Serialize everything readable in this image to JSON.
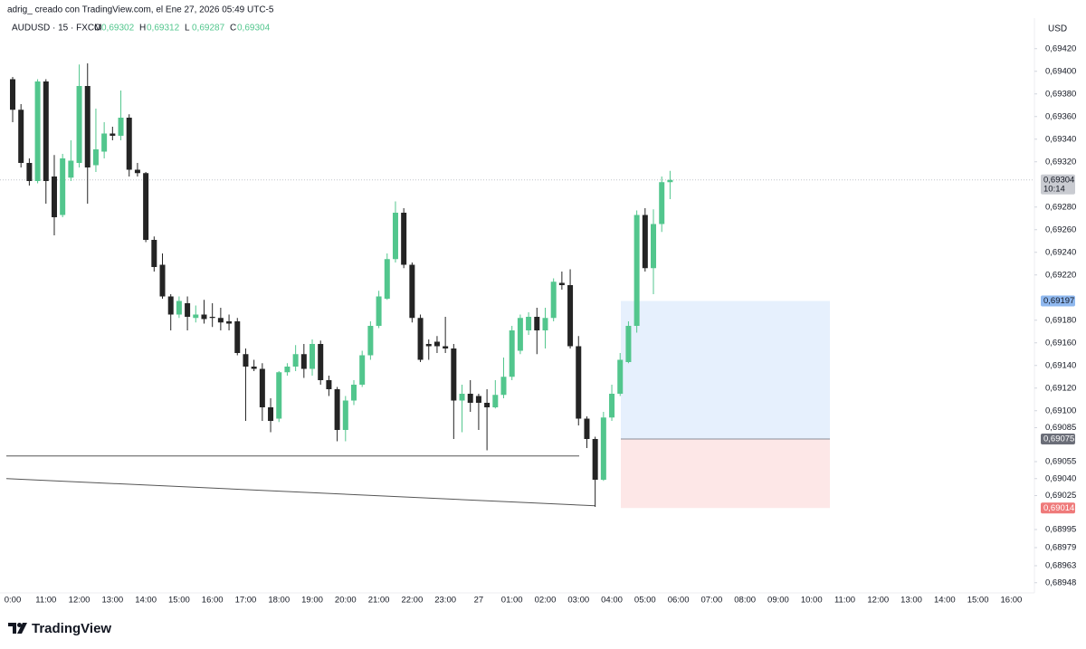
{
  "header": "adrig_ creado con TradingView.com, el Ene 27, 2026 05:49 UTC-5",
  "legend": {
    "symbol": "AUDUSD · 15 · FXCM",
    "ohlc": [
      {
        "key": "O",
        "value": "0,69302"
      },
      {
        "key": "H",
        "value": "0,69312"
      },
      {
        "key": "L",
        "value": "0,69287"
      },
      {
        "key": "C",
        "value": "0,69304"
      }
    ]
  },
  "logo": "TradingView",
  "chart_data": {
    "type": "candlestick",
    "currency": "USD",
    "up_color": "#52c68d",
    "down_color": "#242424",
    "open": [
      0.69393,
      0.69366,
      0.69319,
      0.69303,
      0.69391,
      0.69307,
      0.69273,
      0.69306,
      0.69319,
      0.69387,
      0.69317,
      0.69329,
      0.69345,
      0.69343,
      0.69359,
      0.69313,
      0.6931,
      0.69251,
      0.69229,
      0.69201,
      0.69185,
      0.69195,
      0.69182,
      0.69185,
      0.69183,
      0.69182,
      0.69179,
      0.69179,
      0.6915,
      0.69139,
      0.69137,
      0.69103,
      0.69093,
      0.69134,
      0.69139,
      0.6915,
      0.69137,
      0.69159,
      0.69127,
      0.69119,
      0.69083,
      0.69109,
      0.69123,
      0.69149,
      0.69175,
      0.69199,
      0.69234,
      0.69275,
      0.69229,
      0.69182,
      0.69159,
      0.69161,
      0.69157,
      0.69155,
      0.69109,
      0.69115,
      0.69113,
      0.69107,
      0.69103,
      0.69114,
      0.6913,
      0.69153,
      0.69171,
      0.69183,
      0.69171,
      0.69182,
      0.69213,
      0.69211,
      0.69157,
      0.69093,
      0.69075,
      0.69039,
      0.69094,
      0.69115,
      0.69143,
      0.69175,
      0.69273,
      0.69226,
      0.69265,
      0.69302
    ],
    "high": [
      0.69395,
      0.69371,
      0.69323,
      0.69393,
      0.69393,
      0.69326,
      0.69327,
      0.69339,
      0.69406,
      0.69407,
      0.69367,
      0.69355,
      0.69351,
      0.69383,
      0.69362,
      0.69319,
      0.69311,
      0.69254,
      0.69239,
      0.69203,
      0.69201,
      0.69201,
      0.69193,
      0.69198,
      0.69195,
      0.69191,
      0.69185,
      0.69182,
      0.69155,
      0.69145,
      0.69142,
      0.69111,
      0.69135,
      0.69142,
      0.69158,
      0.69159,
      0.69163,
      0.69162,
      0.69131,
      0.69121,
      0.69113,
      0.69127,
      0.69153,
      0.69179,
      0.69206,
      0.69239,
      0.69285,
      0.69279,
      0.69231,
      0.69185,
      0.69163,
      0.69166,
      0.69183,
      0.69159,
      0.69123,
      0.69127,
      0.69115,
      0.69119,
      0.69127,
      0.69147,
      0.69175,
      0.69185,
      0.69187,
      0.69191,
      0.69191,
      0.69217,
      0.69223,
      0.69225,
      0.69166,
      0.69095,
      0.69077,
      0.69099,
      0.69123,
      0.69151,
      0.69179,
      0.69277,
      0.69279,
      0.69278,
      0.69307,
      0.69312
    ],
    "low": [
      0.69355,
      0.69315,
      0.69299,
      0.69301,
      0.69283,
      0.69255,
      0.69271,
      0.69303,
      0.69315,
      0.69283,
      0.69311,
      0.69323,
      0.69339,
      0.69339,
      0.69307,
      0.69307,
      0.69249,
      0.69223,
      0.69199,
      0.69171,
      0.69182,
      0.69171,
      0.69178,
      0.69177,
      0.69174,
      0.69171,
      0.69171,
      0.69149,
      0.69091,
      0.69135,
      0.69091,
      0.69081,
      0.6909,
      0.69131,
      0.69135,
      0.69129,
      0.69131,
      0.69123,
      0.69113,
      0.69073,
      0.69073,
      0.69105,
      0.69121,
      0.69145,
      0.69173,
      0.69198,
      0.69231,
      0.69226,
      0.69178,
      0.69143,
      0.69145,
      0.69151,
      0.69151,
      0.69075,
      0.69081,
      0.69099,
      0.69083,
      0.69065,
      0.69102,
      0.69111,
      0.69127,
      0.6915,
      0.69167,
      0.6915,
      0.69155,
      0.69179,
      0.69207,
      0.69155,
      0.69087,
      0.69067,
      0.69015,
      0.69038,
      0.69091,
      0.69113,
      0.69142,
      0.69169,
      0.69223,
      0.69203,
      0.69258,
      0.69287
    ],
    "close": [
      0.69366,
      0.69319,
      0.69303,
      0.69391,
      0.69303,
      0.69271,
      0.69323,
      0.69321,
      0.69387,
      0.69315,
      0.69331,
      0.69345,
      0.69343,
      0.69359,
      0.69313,
      0.6931,
      0.69251,
      0.69227,
      0.69201,
      0.69185,
      0.69197,
      0.69183,
      0.69185,
      0.69181,
      0.69182,
      0.69178,
      0.69177,
      0.69151,
      0.69139,
      0.69137,
      0.69103,
      0.69091,
      0.69134,
      0.69139,
      0.6915,
      0.69137,
      0.69159,
      0.69127,
      0.69119,
      0.69083,
      0.69109,
      0.69123,
      0.69149,
      0.69175,
      0.69201,
      0.69234,
      0.69275,
      0.69229,
      0.69182,
      0.69145,
      0.69157,
      0.69157,
      0.69155,
      0.69109,
      0.69115,
      0.69107,
      0.69107,
      0.69103,
      0.69114,
      0.6913,
      0.69171,
      0.69182,
      0.69183,
      0.69171,
      0.69182,
      0.69214,
      0.69211,
      0.69157,
      0.69093,
      0.69075,
      0.69039,
      0.69094,
      0.69115,
      0.69145,
      0.69175,
      0.69273,
      0.69226,
      0.69265,
      0.69302,
      0.69304
    ],
    "xticks": [
      "0:00",
      "11:00",
      "12:00",
      "13:00",
      "14:00",
      "15:00",
      "16:00",
      "17:00",
      "18:00",
      "19:00",
      "20:00",
      "21:00",
      "22:00",
      "23:00",
      "27",
      "01:00",
      "02:00",
      "03:00",
      "04:00",
      "05:00",
      "06:00",
      "07:00",
      "08:00",
      "09:00",
      "10:00",
      "11:00",
      "12:00",
      "13:00",
      "14:00",
      "15:00",
      "16:00"
    ],
    "ylim": [
      0.68939,
      0.69447
    ],
    "yticks": [
      {
        "value": 0.6942,
        "label": "0,69420"
      },
      {
        "value": 0.694,
        "label": "0,69400"
      },
      {
        "value": 0.6938,
        "label": "0,69380"
      },
      {
        "value": 0.6936,
        "label": "0,69360"
      },
      {
        "value": 0.6934,
        "label": "0,69340"
      },
      {
        "value": 0.6932,
        "label": "0,69320"
      },
      {
        "value": 0.6928,
        "label": "0,69280"
      },
      {
        "value": 0.6926,
        "label": "0,69260"
      },
      {
        "value": 0.6924,
        "label": "0,69240"
      },
      {
        "value": 0.6922,
        "label": "0,69220"
      },
      {
        "value": 0.6918,
        "label": "0,69180"
      },
      {
        "value": 0.6916,
        "label": "0,69160"
      },
      {
        "value": 0.6914,
        "label": "0,69140"
      },
      {
        "value": 0.6912,
        "label": "0,69120"
      },
      {
        "value": 0.691,
        "label": "0,69100"
      },
      {
        "value": 0.69085,
        "label": "0,69085"
      },
      {
        "value": 0.69055,
        "label": "0,69055"
      },
      {
        "value": 0.6904,
        "label": "0,69040"
      },
      {
        "value": 0.69025,
        "label": "0,69025"
      },
      {
        "value": 0.68995,
        "label": "0,68995"
      },
      {
        "value": 0.68979,
        "label": "0,68979"
      },
      {
        "value": 0.68963,
        "label": "0,68963"
      },
      {
        "value": 0.68948,
        "label": "0,68948"
      }
    ],
    "price_labels": [
      {
        "value": 0.69304,
        "label": "0,69304",
        "countdown": "10:14",
        "color": "#c9cbd1",
        "text_color": "#131722"
      },
      {
        "value": 0.69197,
        "label": "0,69197",
        "color": "#8fb8ef",
        "text_color": "#131722"
      },
      {
        "value": 0.69075,
        "label": "0,69075",
        "color": "#6b6e78",
        "text_color": "#ffffff"
      },
      {
        "value": 0.69014,
        "label": "0,69014",
        "color": "#ef7a7a",
        "text_color": "#ffffff"
      }
    ],
    "position": {
      "entry": 0.69075,
      "target": 0.69197,
      "stop": 0.69014
    },
    "horizontal_line": 0.6906,
    "trend_line": [
      0.6904,
      0.69016
    ]
  }
}
